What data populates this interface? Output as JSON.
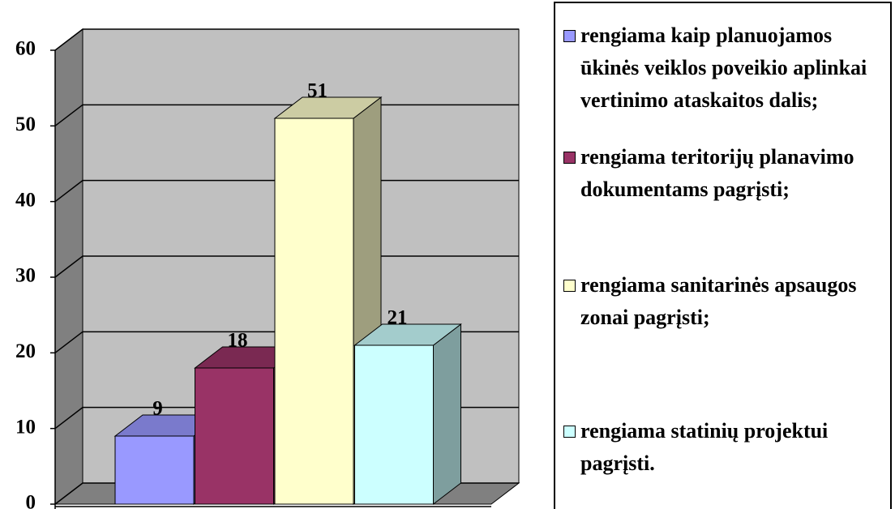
{
  "chart_data": {
    "type": "bar3d",
    "series": [
      {
        "name": "rengiama kaip planuojamos ūkinės veiklos poveikio aplinkai vertinimo ataskaitos dalis;",
        "color": "#9999ff",
        "values": [
          9
        ]
      },
      {
        "name": "rengiama teritorijų planavimo dokumentams pagrįsti;",
        "color": "#993366",
        "values": [
          18
        ]
      },
      {
        "name": "rengiama sanitarinės apsaugos zonai pagrįsti;",
        "color": "#ffffcc",
        "values": [
          51
        ]
      },
      {
        "name": "rengiama statinių projektui pagrįsti.",
        "color": "#ccffff",
        "values": [
          21
        ]
      }
    ],
    "ylim": [
      0,
      60
    ],
    "yticks": [
      0,
      10,
      20,
      30,
      40,
      50,
      60
    ],
    "grid": true,
    "legend": "right"
  }
}
